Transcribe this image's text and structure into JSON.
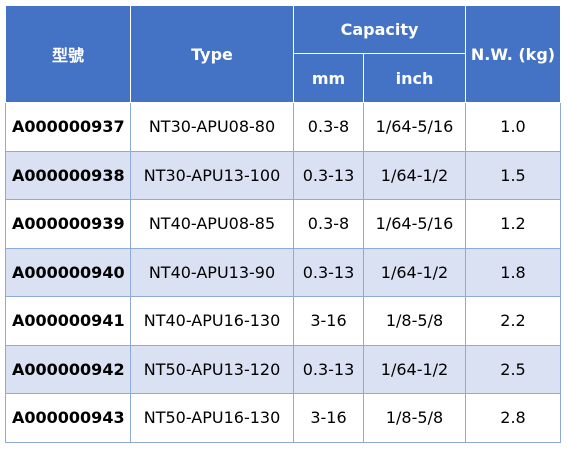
{
  "table": {
    "header": {
      "model": "型號",
      "type": "Type",
      "capacity": "Capacity",
      "mm": "mm",
      "inch": "inch",
      "weight": "N.W. (kg)"
    },
    "rows": [
      [
        "A000000937",
        "NT30-APU08-80",
        "0.3-8",
        "1/64-5/16",
        "1.0"
      ],
      [
        "A000000938",
        "NT30-APU13-100",
        "0.3-13",
        "1/64-1/2",
        "1.5"
      ],
      [
        "A000000939",
        "NT40-APU08-85",
        "0.3-8",
        "1/64-5/16",
        "1.2"
      ],
      [
        "A000000940",
        "NT40-APU13-90",
        "0.3-13",
        "1/64-1/2",
        "1.8"
      ],
      [
        "A000000941",
        "NT40-APU16-130",
        "3-16",
        "1/8-5/8",
        "2.2"
      ],
      [
        "A000000942",
        "NT50-APU13-120",
        "0.3-13",
        "1/64-1/2",
        "2.5"
      ],
      [
        "A000000943",
        "NT50-APU16-130",
        "3-16",
        "1/8-5/8",
        "2.8"
      ]
    ]
  }
}
